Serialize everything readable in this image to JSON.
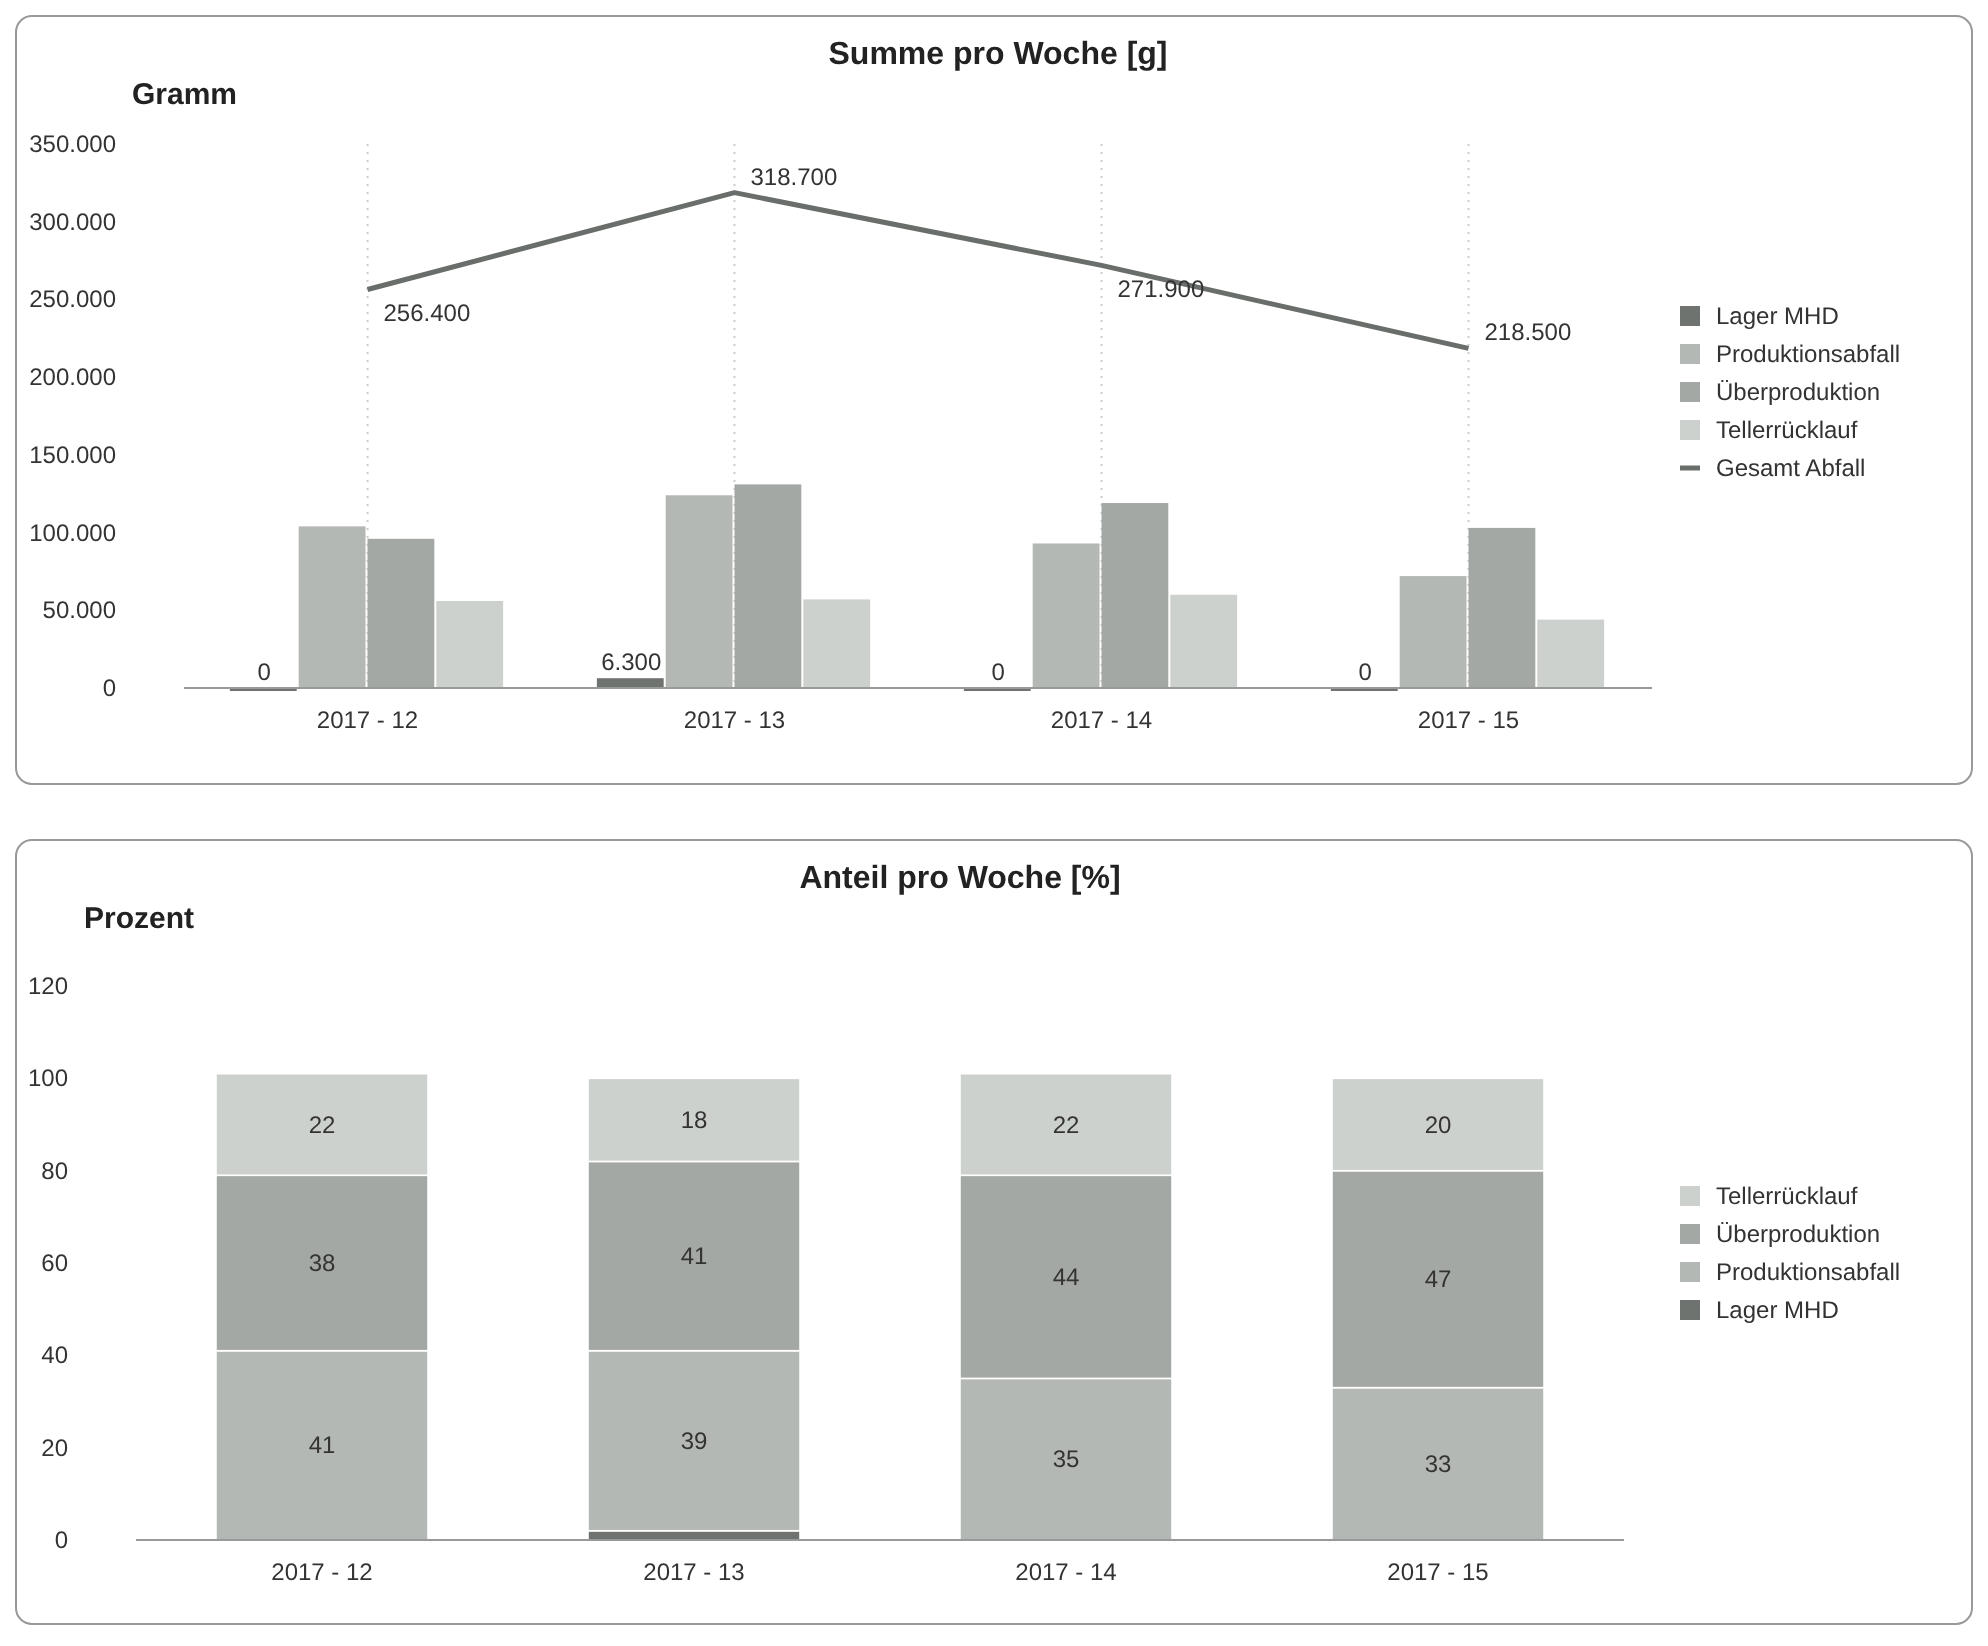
{
  "chart_data": [
    {
      "type": "bar",
      "title": "Summe pro Woche [g]",
      "ylabel": "Gramm",
      "categories": [
        "2017 - 12",
        "2017 - 13",
        "2017 - 14",
        "2017 - 15"
      ],
      "series": [
        {
          "name": "Lager MHD",
          "color": "#6f736f",
          "values": [
            0,
            6300,
            0,
            0
          ],
          "value_labels": [
            "0",
            "6.300",
            "0",
            "0"
          ]
        },
        {
          "name": "Produktionsabfall",
          "color": "#b4b8b4",
          "values": [
            104000,
            124000,
            93000,
            72000
          ]
        },
        {
          "name": "Überproduktion",
          "color": "#a4a8a4",
          "values": [
            96000,
            131000,
            119000,
            103000
          ]
        },
        {
          "name": "Tellerrücklauf",
          "color": "#cdd1cd",
          "values": [
            56000,
            57000,
            60000,
            44000
          ]
        },
        {
          "name": "Gesamt Abfall",
          "type": "line",
          "color": "#6a6e6a",
          "values": [
            256400,
            318700,
            271900,
            218500
          ],
          "value_labels": [
            "256.400",
            "318.700",
            "271.900",
            "218.500"
          ]
        }
      ],
      "ylim": [
        0,
        350000
      ],
      "yticks": [
        {
          "value": 0,
          "label": "0"
        },
        {
          "value": 50000,
          "label": "50.000"
        },
        {
          "value": 100000,
          "label": "100.000"
        },
        {
          "value": 150000,
          "label": "150.000"
        },
        {
          "value": 200000,
          "label": "200.000"
        },
        {
          "value": 250000,
          "label": "250.000"
        },
        {
          "value": 300000,
          "label": "300.000"
        },
        {
          "value": 350000,
          "label": "350.000"
        }
      ],
      "grid": "x",
      "legend": "right",
      "marker": "none"
    },
    {
      "type": "bar",
      "stacked": true,
      "title": "Anteil pro Woche [%]",
      "ylabel": "Prozent",
      "categories": [
        "2017 - 12",
        "2017 - 13",
        "2017 - 14",
        "2017 - 15"
      ],
      "series": [
        {
          "name": "Lager MHD",
          "color": "#6f736f",
          "values": [
            0,
            2,
            0,
            0
          ]
        },
        {
          "name": "Produktionsabfall",
          "color": "#b4b8b4",
          "values": [
            41,
            39,
            35,
            33
          ],
          "value_labels": [
            "41",
            "39",
            "35",
            "33"
          ]
        },
        {
          "name": "Überproduktion",
          "color": "#a4a8a4",
          "values": [
            38,
            41,
            44,
            47
          ],
          "value_labels": [
            "38",
            "41",
            "44",
            "47"
          ]
        },
        {
          "name": "Tellerrücklauf",
          "color": "#cdd1cd",
          "values": [
            22,
            18,
            22,
            20
          ],
          "value_labels": [
            "22",
            "18",
            "22",
            "20"
          ]
        }
      ],
      "ylim": [
        0,
        120
      ],
      "yticks": [
        0,
        20,
        40,
        60,
        80,
        100,
        120
      ],
      "legend": "right"
    }
  ]
}
